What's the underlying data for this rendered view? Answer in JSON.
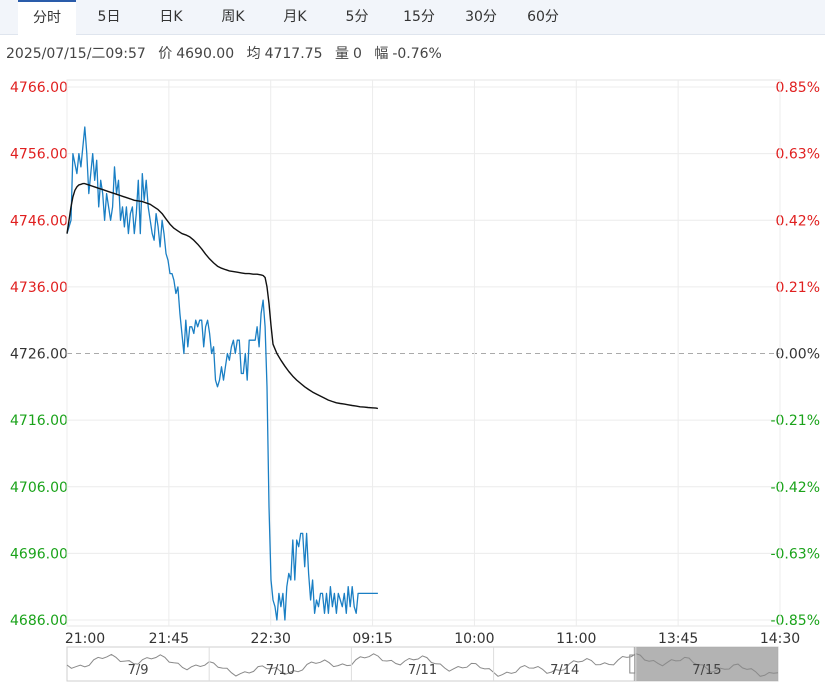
{
  "tabs": [
    {
      "label": "分时",
      "active": true
    },
    {
      "label": "5日",
      "active": false
    },
    {
      "label": "日K",
      "active": false
    },
    {
      "label": "周K",
      "active": false
    },
    {
      "label": "月K",
      "active": false
    },
    {
      "label": "5分",
      "active": false
    },
    {
      "label": "15分",
      "active": false
    },
    {
      "label": "30分",
      "active": false
    },
    {
      "label": "60分",
      "active": false
    }
  ],
  "info": {
    "datetime": "2025/07/15/二09:57",
    "price_label": "价",
    "price": "4690.00",
    "avg_label": "均",
    "avg": "4717.75",
    "volume_label": "量",
    "volume": "0",
    "change_label": "幅",
    "change": "-0.76%"
  },
  "colors": {
    "price_line": "#1a7fc4",
    "avg_line": "#111111",
    "up": "#e02020",
    "down": "#1aa31a",
    "neutral": "#333333",
    "grid": "#ececec"
  },
  "chart_data": {
    "type": "line",
    "title": "",
    "prev_close": 4726.0,
    "ylim": [
      4686.0,
      4766.0
    ],
    "y_ticks_left": [
      "4766.00",
      "4756.00",
      "4746.00",
      "4736.00",
      "4726.00",
      "4716.00",
      "4706.00",
      "4696.00",
      "4686.00"
    ],
    "y_ticks_right": [
      "0.85%",
      "0.63%",
      "0.42%",
      "0.21%",
      "0.00%",
      "-0.21%",
      "-0.42%",
      "-0.63%",
      "-0.85%"
    ],
    "x_ticks": [
      "21:00",
      "21:45",
      "22:30",
      "09:15",
      "10:00",
      "11:00",
      "13:45",
      "14:30"
    ],
    "x_units": "minutes from 21:00 session open (night session 21:00-23:00, day session from 09:00)",
    "series": [
      {
        "name": "价",
        "x": [
          0,
          2,
          3,
          5,
          6,
          7,
          9,
          10,
          11,
          13,
          14,
          15,
          16,
          17,
          18,
          19,
          20,
          21,
          22,
          23,
          24,
          25,
          26,
          27,
          28,
          29,
          30,
          31,
          32,
          33,
          34,
          35,
          36,
          37,
          38,
          39,
          40,
          41,
          42,
          43,
          44,
          45,
          46,
          47,
          48,
          49,
          50,
          51,
          52,
          53,
          54,
          55,
          56,
          57,
          58,
          59,
          60,
          61,
          62,
          63,
          64,
          65,
          66,
          67,
          68,
          69,
          70,
          71,
          72,
          73,
          74,
          75,
          76,
          77,
          78,
          79,
          80,
          81,
          82,
          83,
          84,
          85,
          86,
          87,
          88,
          89,
          90,
          91,
          92,
          93,
          94,
          95,
          96,
          97,
          98,
          99,
          100,
          101,
          102,
          103,
          104,
          105,
          106,
          107,
          108,
          109,
          110,
          111,
          112,
          113,
          114,
          115,
          116,
          117,
          118,
          119,
          120,
          121,
          122,
          123,
          124,
          125,
          126,
          127,
          128,
          129,
          130,
          131,
          132,
          133,
          134,
          135,
          136,
          137,
          138,
          139,
          140,
          141,
          142,
          143,
          144,
          145,
          146,
          147,
          148,
          149,
          150,
          151,
          152,
          153,
          154,
          155,
          156,
          157
        ],
        "values": [
          4744,
          4746,
          4756,
          4753,
          4756,
          4754,
          4760,
          4756,
          4750,
          4756,
          4752,
          4755,
          4748,
          4752,
          4750,
          4746,
          4750,
          4748,
          4746,
          4748,
          4754,
          4750,
          4752,
          4746,
          4748,
          4745,
          4748,
          4744,
          4747,
          4748,
          4744,
          4747,
          4752,
          4744,
          4753,
          4749,
          4752,
          4748,
          4746,
          4744,
          4743,
          4747,
          4745,
          4742,
          4746,
          4744,
          4741,
          4740,
          4738,
          4738,
          4737,
          4735,
          4736,
          4732,
          4729,
          4726,
          4731,
          4727,
          4730,
          4730,
          4729,
          4731,
          4730,
          4731,
          4731,
          4727,
          4730,
          4731,
          4729,
          4726,
          4727,
          4722,
          4721,
          4722,
          4724,
          4722,
          4724,
          4726,
          4725,
          4727,
          4728,
          4726,
          4728,
          4728,
          4723,
          4723,
          4726,
          4722,
          4728,
          4728,
          4728,
          4728,
          4730,
          4727,
          4732,
          4734,
          4730,
          4721,
          4703,
          4692,
          4689,
          4688,
          4686,
          4690,
          4688,
          4690,
          4686,
          4691,
          4693,
          4692,
          4698,
          4692,
          4698,
          4697,
          4699,
          4699,
          4694,
          4699,
          4693,
          4689,
          4692,
          4687,
          4689,
          4688,
          4690,
          4690,
          4687,
          4690,
          4687,
          4691,
          4688,
          4690,
          4687,
          4690,
          4689,
          4688,
          4690,
          4687,
          4691,
          4688,
          4691,
          4688,
          4687,
          4690,
          4690,
          4690,
          4690,
          4690,
          4690,
          4690,
          4690,
          4690,
          4690,
          4690
        ]
      },
      {
        "name": "均",
        "x": [
          0,
          1,
          2,
          3,
          4,
          5,
          6,
          7,
          8,
          9,
          10,
          11,
          12,
          14,
          16,
          18,
          20,
          22,
          24,
          26,
          28,
          30,
          32,
          34,
          36,
          38,
          40,
          42,
          44,
          46,
          48,
          50,
          52,
          54,
          56,
          58,
          60,
          62,
          64,
          66,
          68,
          70,
          72,
          74,
          76,
          78,
          80,
          82,
          84,
          86,
          88,
          90,
          92,
          94,
          96,
          98,
          99,
          100,
          101,
          102,
          103,
          104,
          106,
          108,
          110,
          112,
          114,
          116,
          118,
          120,
          122,
          124,
          126,
          128,
          130,
          132,
          134,
          136,
          138,
          140,
          142,
          144,
          146,
          148,
          150,
          152,
          154,
          156,
          157
        ],
        "values": [
          4744,
          4746,
          4748,
          4749.5,
          4750.5,
          4751,
          4751.3,
          4751.4,
          4751.5,
          4751.5,
          4751.4,
          4751.3,
          4751.2,
          4751.0,
          4750.8,
          4750.6,
          4750.4,
          4750.2,
          4750.0,
          4749.8,
          4749.6,
          4749.4,
          4749.2,
          4749.0,
          4748.9,
          4748.8,
          4748.6,
          4748.4,
          4748.0,
          4747.6,
          4747.0,
          4746.2,
          4745.4,
          4744.8,
          4744.4,
          4744.0,
          4743.8,
          4743.5,
          4743.0,
          4742.4,
          4741.7,
          4740.9,
          4740.2,
          4739.6,
          4739.1,
          4738.8,
          4738.6,
          4738.4,
          4738.3,
          4738.2,
          4738.1,
          4738.0,
          4738.0,
          4737.9,
          4737.9,
          4737.8,
          4737.7,
          4737.4,
          4736.0,
          4733.5,
          4730.2,
          4727.4,
          4726.0,
          4725.0,
          4724.1,
          4723.3,
          4722.6,
          4722.0,
          4721.5,
          4721.0,
          4720.6,
          4720.2,
          4719.9,
          4719.6,
          4719.3,
          4719.0,
          4718.8,
          4718.6,
          4718.5,
          4718.4,
          4718.3,
          4718.2,
          4718.1,
          4718.0,
          4717.95,
          4717.9,
          4717.85,
          4717.8,
          4717.75
        ]
      }
    ]
  },
  "navigator": {
    "labels": [
      "7/9",
      "7/10",
      "7/11",
      "7/14",
      "7/15"
    ]
  }
}
